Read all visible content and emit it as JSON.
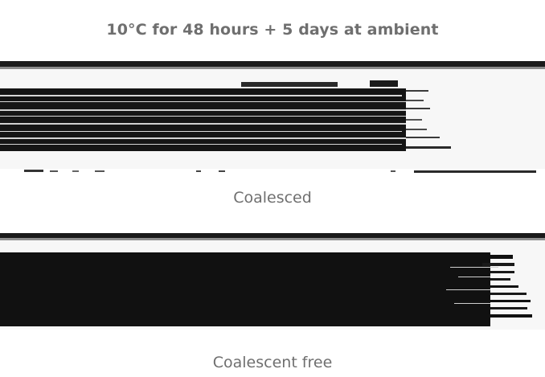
{
  "title": "10°C for 48 hours + 5 days at ambient",
  "panels": [
    {
      "caption": "Coalesced"
    },
    {
      "caption": "Coalescent free"
    }
  ],
  "colors": {
    "text": "#6f6f6f",
    "film": "#111111",
    "substrate": "#f3f3f3"
  }
}
